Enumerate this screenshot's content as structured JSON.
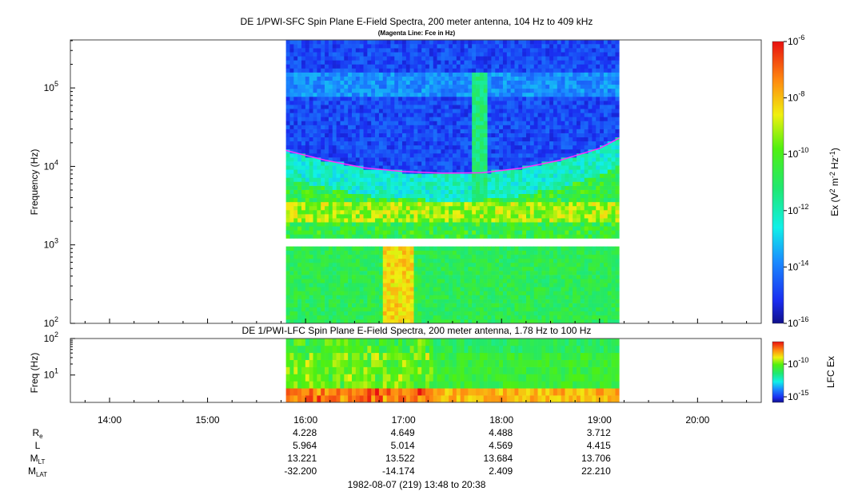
{
  "header": {
    "title_sfc": "DE 1/PWI-SFC  Spin Plane E-Field Spectra, 200 meter antenna, 104 Hz to 409 kHz",
    "subtitle_sfc": "(Magenta Line: Fce in Hz)",
    "title_lfc": "DE 1/PWI-LFC  Spin Plane E-Field Spectra, 200 meter antenna, 1.78 Hz to 100 Hz"
  },
  "chart_data": [
    {
      "type": "heatmap",
      "title": "DE 1/PWI-SFC  Spin Plane E-Field Spectra, 200 meter antenna, 104 Hz to 409 kHz",
      "subtitle": "(Magenta Line: Fce in Hz)",
      "ylabel": "Frequency (Hz)",
      "yscale": "log",
      "ylim": [
        100,
        409000
      ],
      "y_ticks": [
        {
          "value": 100,
          "base": "10",
          "exp": "2"
        },
        {
          "value": 1000,
          "base": "10",
          "exp": "3"
        },
        {
          "value": 10000,
          "base": "10",
          "exp": "4"
        },
        {
          "value": 100000,
          "base": "10",
          "exp": "5"
        }
      ],
      "xlim_hours": [
        13.6,
        20.65
      ],
      "data_span_hours": [
        15.8,
        19.2
      ],
      "colorbar": {
        "label": "Ex (V² m⁻² Hz⁻¹)",
        "scale": "log",
        "range": [
          1e-16,
          1e-06
        ],
        "ticks": [
          {
            "value": 1e-06,
            "exp": "-6"
          },
          {
            "value": 1e-08,
            "exp": "-8"
          },
          {
            "value": 1e-10,
            "exp": "-10"
          },
          {
            "value": 1e-12,
            "exp": "-12"
          },
          {
            "value": 1e-14,
            "exp": "-14"
          },
          {
            "value": 1e-16,
            "exp": "-16"
          }
        ]
      },
      "series": [
        {
          "name": "Fce",
          "color": "#ff33ff",
          "x_hours": [
            15.8,
            16.2,
            16.6,
            17.0,
            17.4,
            17.8,
            18.2,
            18.6,
            19.0,
            19.2
          ],
          "y_hz": [
            16000,
            12000,
            9600,
            8600,
            8200,
            8300,
            9500,
            12000,
            17000,
            23000
          ]
        }
      ]
    },
    {
      "type": "heatmap",
      "title": "DE 1/PWI-LFC  Spin Plane E-Field Spectra, 200 meter antenna, 1.78 Hz to 100 Hz",
      "ylabel": "Freq (Hz)",
      "yscale": "log",
      "ylim": [
        1.78,
        100
      ],
      "y_ticks": [
        {
          "value": 10,
          "base": "10",
          "exp": "1"
        },
        {
          "value": 100,
          "base": "10",
          "exp": "2"
        }
      ],
      "colorbar": {
        "label": "LFC Ex",
        "scale": "log",
        "ticks": [
          {
            "value": 1e-10,
            "exp": "-10"
          },
          {
            "value": 1e-15,
            "exp": "-15"
          }
        ]
      }
    }
  ],
  "time_axis": {
    "ticks": [
      {
        "hour": 14,
        "label": "14:00"
      },
      {
        "hour": 15,
        "label": "15:00"
      },
      {
        "hour": 16,
        "label": "16:00"
      },
      {
        "hour": 17,
        "label": "17:00"
      },
      {
        "hour": 18,
        "label": "18:00"
      },
      {
        "hour": 19,
        "label": "19:00"
      },
      {
        "hour": 20,
        "label": "20:00"
      }
    ]
  },
  "ephemeris": {
    "rows": [
      {
        "label": "R",
        "sub": "e",
        "values": [
          "4.228",
          "4.649",
          "4.488",
          "3.712"
        ]
      },
      {
        "label": "L",
        "sub": "",
        "values": [
          "5.964",
          "5.014",
          "4.569",
          "4.415"
        ]
      },
      {
        "label": "M",
        "sub": "LT",
        "values": [
          "13.221",
          "13.522",
          "13.684",
          "13.706"
        ]
      },
      {
        "label": "M",
        "sub": "LAT",
        "values": [
          "-32.200",
          "-14.174",
          "2.409",
          "22.210"
        ]
      }
    ],
    "date_line": "1982-08-07 (219) 13:48 to 20:38"
  }
}
